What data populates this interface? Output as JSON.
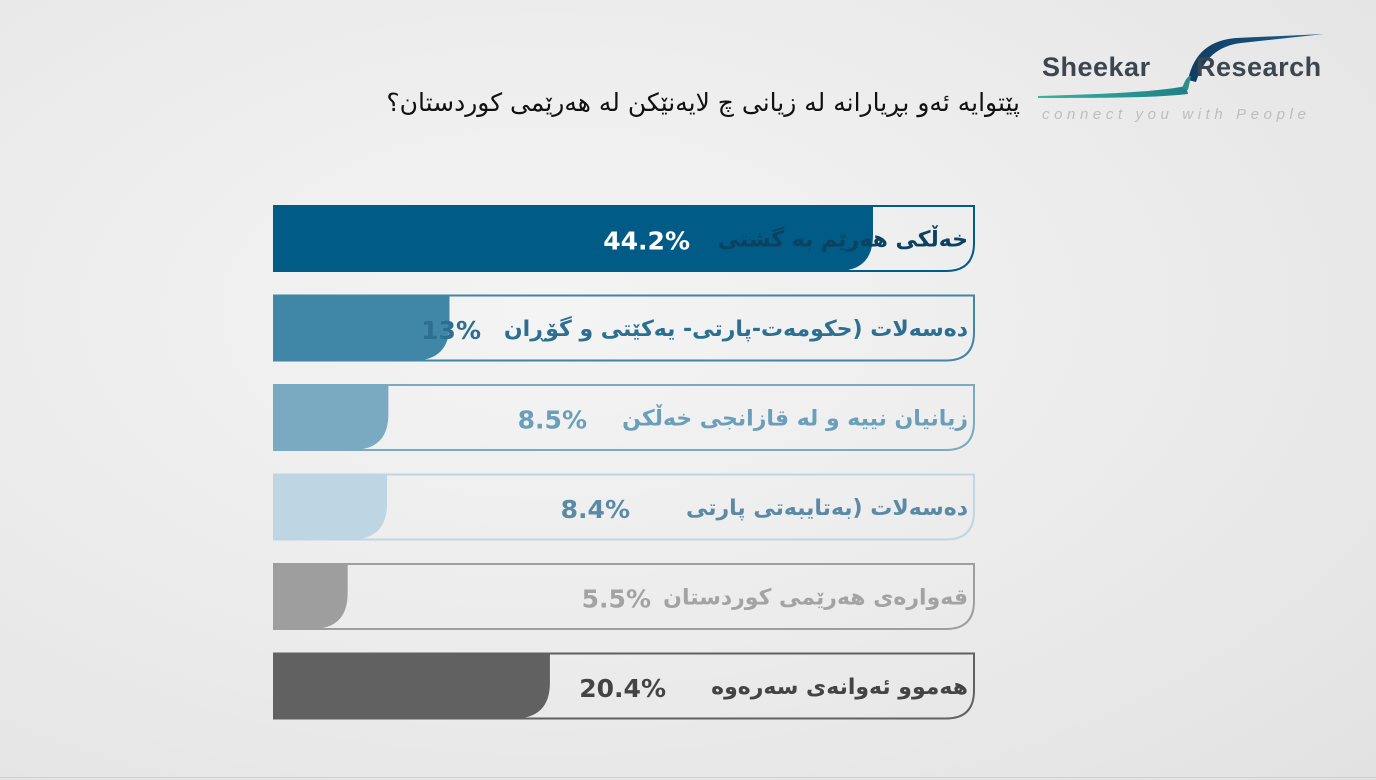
{
  "title": "پێتوایە ئەو بڕیارانە لە زیانی چ لایەنێکن لە هەرێمی کوردستان؟",
  "logo": {
    "name_left": "Sheekar",
    "name_right": "Research",
    "tagline": "connect you with People"
  },
  "chart_data": {
    "type": "bar",
    "orientation": "horizontal",
    "title": "پێتوایە ئەو بڕیارانە لە زیانی چ لایەنێکن لە هەرێمی کوردستان؟",
    "categories": [
      "خەڵکی هەرێم بە گشتی",
      "دەسەلات (حکومەت-پارتی- یەکێتی و گۆڕان",
      "زیانیان نییە و لە قازانجی خەڵکن",
      "دەسەلات (بەتایبەتی پارتی",
      "قەوارەی هەرێمی کوردستان",
      "هەموو ئەوانەی سەرەوە"
    ],
    "values": [
      44.2,
      13,
      8.5,
      8.4,
      5.5,
      20.4
    ],
    "value_labels": [
      "44.2%",
      "13%",
      "8.5%",
      "8.4%",
      "5.5%",
      "20.4%"
    ],
    "colors": [
      "#005b86",
      "#3f86a7",
      "#7aa9c2",
      "#bed6e3",
      "#9e9e9e",
      "#616161"
    ],
    "label_colors": [
      "#ffffff",
      "#2c6f90",
      "#6a9fba",
      "#5b8aa6",
      "#a3a3a3",
      "#444444"
    ],
    "category_colors": [
      "#0c4260",
      "#2c6f90",
      "#6a9fba",
      "#5b8aa6",
      "#a3a3a3",
      "#444444"
    ],
    "xlim": [
      0,
      100
    ],
    "legend": "none",
    "grid": false
  }
}
